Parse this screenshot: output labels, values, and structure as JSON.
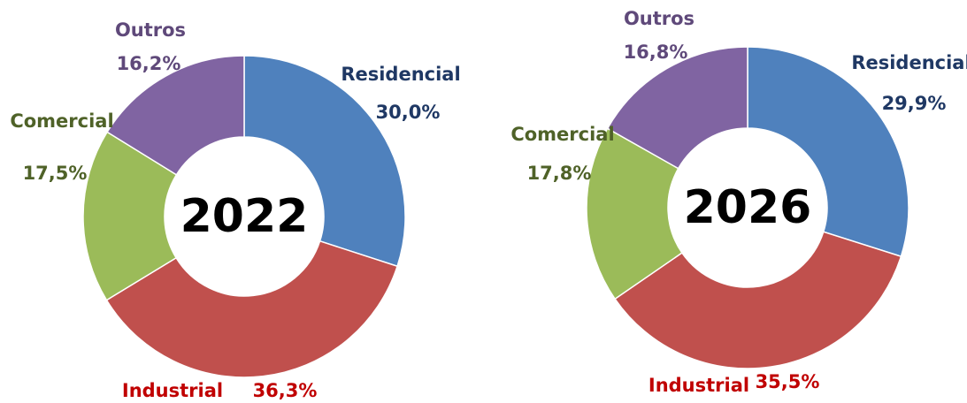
{
  "chart_data": [
    {
      "type": "donut",
      "title": "2022",
      "categories": [
        "Residencial",
        "Industrial",
        "Comercial",
        "Outros"
      ],
      "values": [
        30.0,
        36.3,
        17.5,
        16.2
      ],
      "value_labels": [
        "30,0%",
        "36,3%",
        "17,5%",
        "16,2%"
      ],
      "colors": [
        "#4f81bd",
        "#c0504d",
        "#9bbb59",
        "#8064a2"
      ],
      "label_colors": [
        "#1f3864",
        "#c00000",
        "#4f6228",
        "#5f497a"
      ]
    },
    {
      "type": "donut",
      "title": "2026",
      "categories": [
        "Residencial",
        "Industrial",
        "Comercial",
        "Outros"
      ],
      "values": [
        29.9,
        35.5,
        17.8,
        16.8
      ],
      "value_labels": [
        "29,9%",
        "35,5%",
        "17,8%",
        "16,8%"
      ],
      "colors": [
        "#4f81bd",
        "#c0504d",
        "#9bbb59",
        "#8064a2"
      ],
      "label_colors": [
        "#1f3864",
        "#c00000",
        "#4f6228",
        "#5f497a"
      ]
    }
  ]
}
